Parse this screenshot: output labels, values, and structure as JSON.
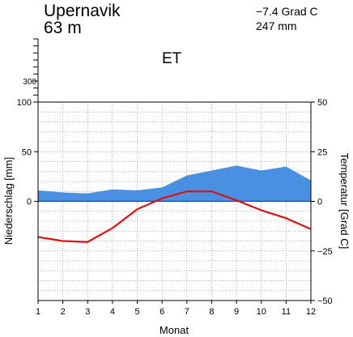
{
  "station": {
    "name": "Upernavik",
    "elevation": "63 m",
    "mean_temperature": "−7.4 Grad C",
    "annual_precipitation": "247 mm",
    "climate_class": "ET"
  },
  "chart_data": {
    "type": "line",
    "xlabel": "Monat",
    "ylabel_left": "Niederschlag [mm]",
    "ylabel_right": "Temperatur [Grad C]",
    "categories": [
      "1",
      "2",
      "3",
      "4",
      "5",
      "6",
      "7",
      "8",
      "9",
      "10",
      "11",
      "12"
    ],
    "x": [
      1,
      2,
      3,
      4,
      5,
      6,
      7,
      8,
      9,
      10,
      11,
      12
    ],
    "xlim": [
      1,
      12
    ],
    "precip_ylim": [
      -100,
      100
    ],
    "precip_upper_tick": 300,
    "precip_ticks": [
      0,
      50,
      100
    ],
    "temp_ylim": [
      -50,
      50
    ],
    "temp_ticks": [
      -50,
      -25,
      0,
      25,
      50
    ],
    "grid": true,
    "series": [
      {
        "name": "Niederschlag",
        "kind": "area",
        "axis": "left",
        "color": "#4a90e2",
        "values": [
          11,
          9,
          8,
          12,
          11,
          14,
          26,
          31,
          36,
          31,
          35,
          21
        ]
      },
      {
        "name": "Temperatur",
        "kind": "line",
        "axis": "right",
        "color": "#e01010",
        "values": [
          -18,
          -20,
          -20.5,
          -13.5,
          -4,
          1.5,
          5,
          5,
          0.5,
          -4.5,
          -8.5,
          -14
        ]
      }
    ]
  }
}
